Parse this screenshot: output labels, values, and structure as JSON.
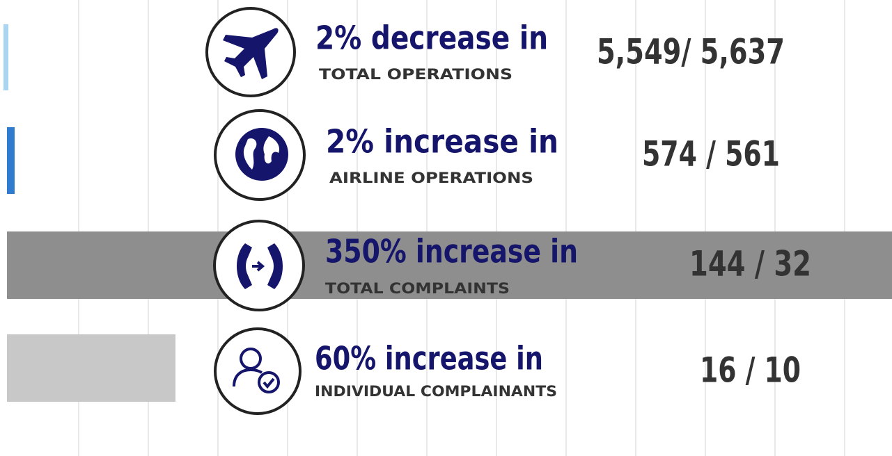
{
  "items": [
    {
      "headline": "2% decrease in",
      "label": "TOTAL OPERATIONS",
      "figures": "5,549/ 5,637"
    },
    {
      "headline": "2% increase in",
      "label": "AIRLINE OPERATIONS",
      "figures": "574 / 561"
    },
    {
      "headline": "350% increase in",
      "label": "TOTAL COMPLAINTS",
      "figures": "144 / 32"
    },
    {
      "headline": "60% increase in",
      "label": "INDIVIDUAL COMPLAINANTS",
      "figures": "16 / 10"
    }
  ]
}
